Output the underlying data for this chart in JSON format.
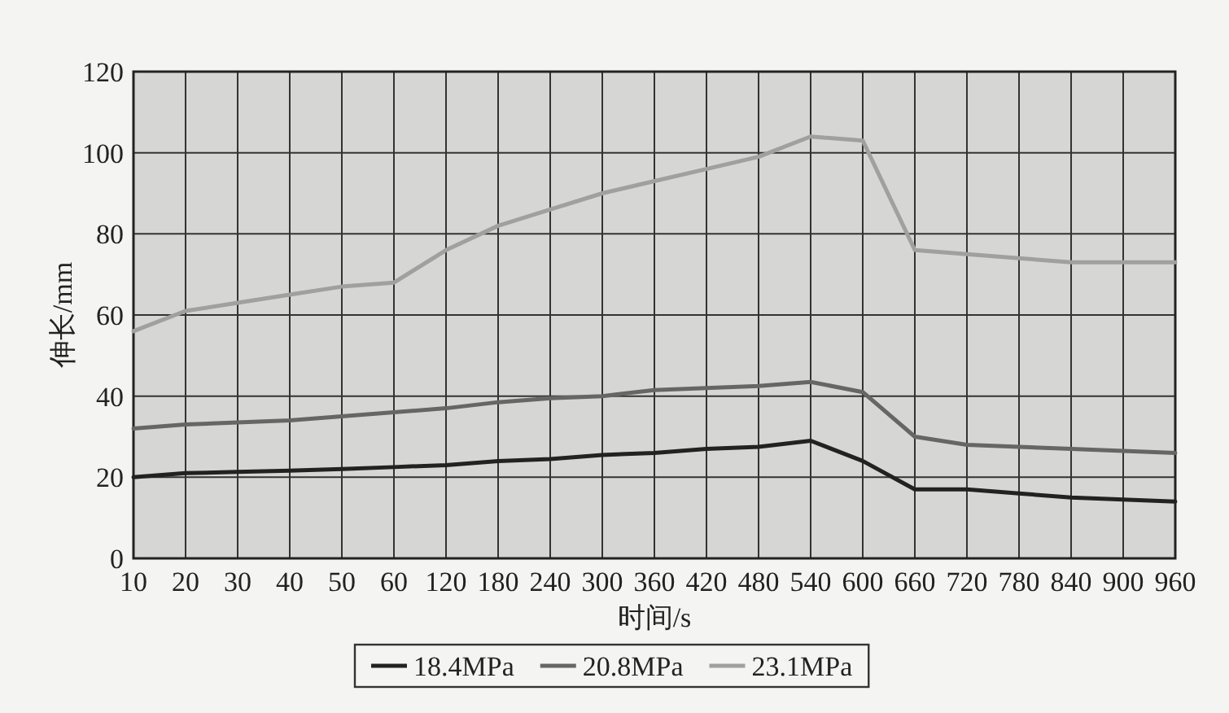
{
  "chart_data": {
    "type": "line",
    "xlabel": "时间/s",
    "ylabel": "伸长/mm",
    "categories": [
      "10",
      "20",
      "30",
      "40",
      "50",
      "60",
      "120",
      "180",
      "240",
      "300",
      "360",
      "420",
      "480",
      "540",
      "600",
      "660",
      "720",
      "780",
      "840",
      "900",
      "960"
    ],
    "ylim": [
      0,
      120
    ],
    "yticks": [
      0,
      20,
      40,
      60,
      80,
      100,
      120
    ],
    "grid": true,
    "legend": "bottom",
    "marker": "none",
    "line_style": "solid",
    "series": [
      {
        "name": "18.4MPa",
        "color": "#222222",
        "values": [
          20,
          21,
          21.3,
          21.6,
          22,
          22.5,
          23,
          24,
          24.5,
          25.5,
          26,
          27,
          27.5,
          29,
          24,
          17,
          17,
          16,
          15,
          14.5,
          14
        ]
      },
      {
        "name": "20.8MPa",
        "color": "#666666",
        "values": [
          32,
          33,
          33.5,
          34,
          35,
          36,
          37,
          38.5,
          39.5,
          40,
          41.5,
          42,
          42.5,
          43.5,
          41,
          30,
          28,
          27.5,
          27,
          26.5,
          26
        ]
      },
      {
        "name": "23.1MPa",
        "color": "#a0a0a0",
        "values": [
          56,
          61,
          63,
          65,
          67,
          68,
          76,
          82,
          86,
          90,
          93,
          96,
          99,
          104,
          103,
          76,
          75,
          74,
          73,
          73,
          73
        ]
      }
    ]
  }
}
